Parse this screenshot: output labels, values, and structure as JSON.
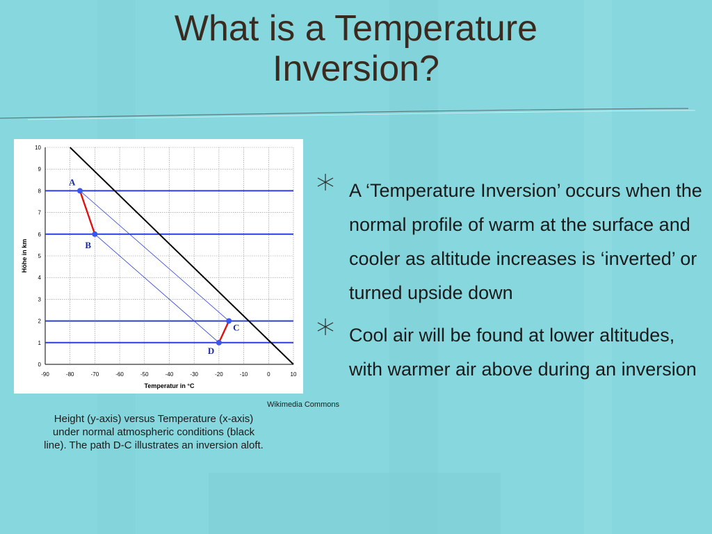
{
  "slide": {
    "title_line1": "What is a Temperature",
    "title_line2": "Inversion?",
    "credit": "Wikimedia Commons",
    "caption": "Height (y-axis) versus Temperature (x-axis) under normal atmospheric conditions (black line). The path D-C illustrates an inversion aloft.",
    "bullets": [
      "A ‘Temperature Inversion’ occurs when the normal profile of warm at the surface and cooler as altitude increases is ‘inverted’ or turned upside down",
      "Cool air will be found at lower altitudes, with warmer air above during an inversion"
    ],
    "bullet_icon": "asterisk-icon"
  },
  "colors": {
    "background": "#86d8de",
    "title": "#3b2a20",
    "normal_line": "#000000",
    "level_lines": "#2b3fd6",
    "path": "#e01010",
    "point": "#3a55f0"
  },
  "chart_data": {
    "type": "line",
    "xlabel": "Temperatur in °C",
    "ylabel": "Höhe in km",
    "xlim": [
      -90,
      10
    ],
    "ylim": [
      0,
      10
    ],
    "xticks": [
      -90,
      -80,
      -70,
      -60,
      -50,
      -40,
      -30,
      -20,
      -10,
      0,
      10
    ],
    "yticks": [
      0,
      1,
      2,
      3,
      4,
      5,
      6,
      7,
      8,
      9,
      10
    ],
    "grid": true,
    "normal_line": {
      "x": [
        -80,
        10
      ],
      "y": [
        10,
        0
      ]
    },
    "levels": [
      1,
      2,
      6,
      8
    ],
    "points": [
      {
        "label": "A",
        "x": -76,
        "y": 8
      },
      {
        "label": "B",
        "x": -70,
        "y": 6
      },
      {
        "label": "C",
        "x": -16,
        "y": 2
      },
      {
        "label": "D",
        "x": -20,
        "y": 1
      }
    ],
    "paths": [
      [
        "A",
        "B"
      ],
      [
        "D",
        "C"
      ]
    ],
    "guides": [
      [
        "A",
        "C"
      ],
      [
        "B",
        "D"
      ]
    ]
  }
}
